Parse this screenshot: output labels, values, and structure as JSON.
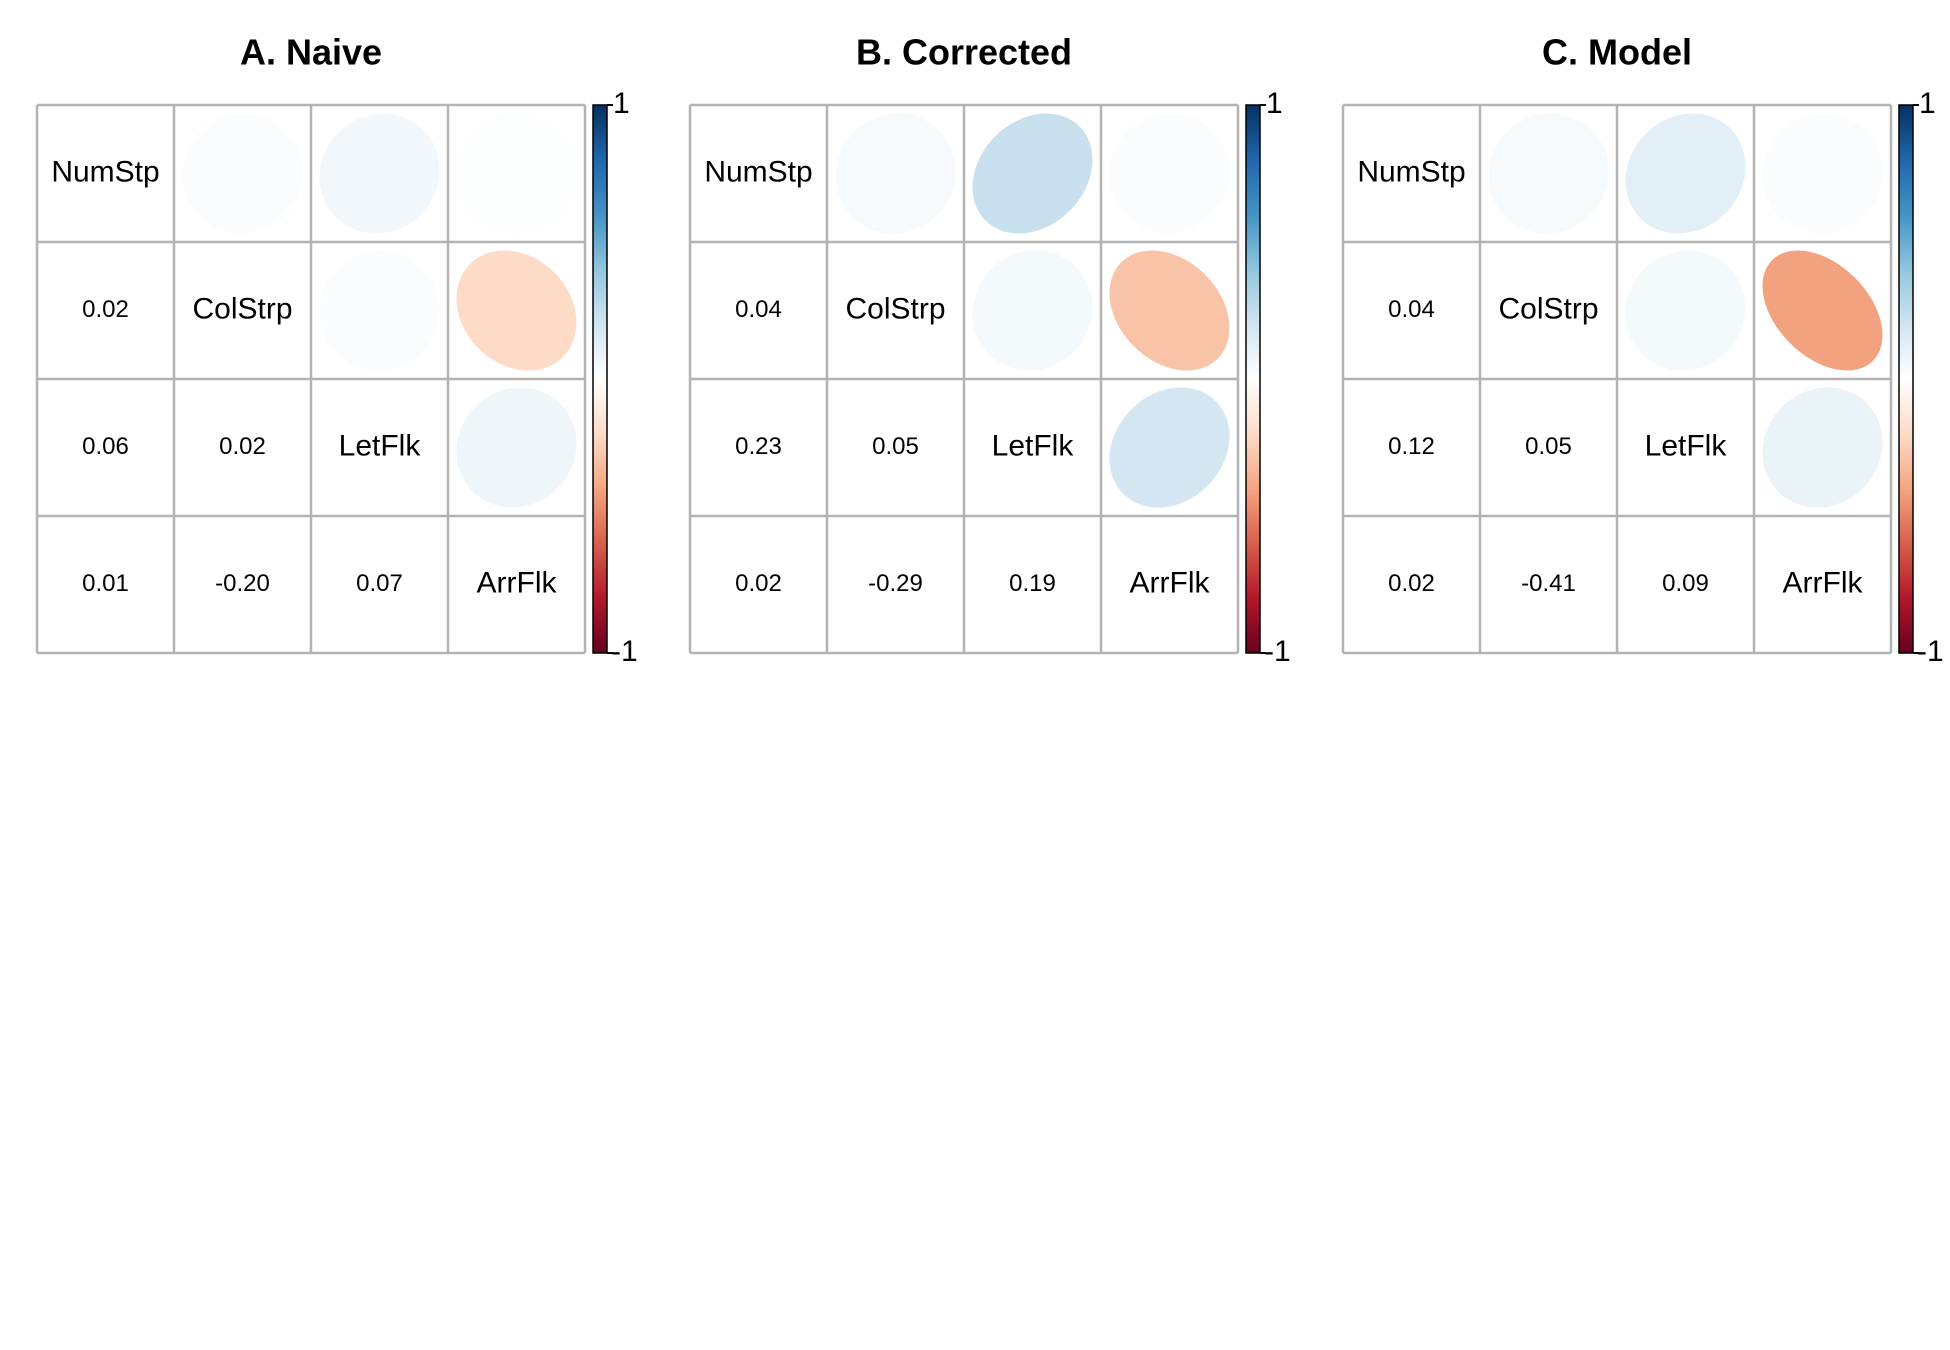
{
  "chart_data": [
    {
      "type": "heatmap",
      "title": "A. Naive",
      "variables": [
        "NumStp",
        "ColStrp",
        "LetFlk",
        "ArrFlk"
      ],
      "matrix": [
        [
          1,
          0.02,
          0.06,
          0.01
        ],
        [
          0.02,
          1,
          0.02,
          -0.2
        ],
        [
          0.06,
          0.02,
          1,
          0.07
        ],
        [
          0.01,
          -0.2,
          0.07,
          1
        ]
      ],
      "lower_labels": [
        [
          "0.02"
        ],
        [
          "0.06",
          "0.02"
        ],
        [
          "0.01",
          "-0.20",
          "0.07"
        ]
      ],
      "colorbar": {
        "max_label": "1",
        "min_label": "-1",
        "range": [
          -1,
          1
        ]
      }
    },
    {
      "type": "heatmap",
      "title": "B. Corrected",
      "variables": [
        "NumStp",
        "ColStrp",
        "LetFlk",
        "ArrFlk"
      ],
      "matrix": [
        [
          1,
          0.04,
          0.23,
          0.02
        ],
        [
          0.04,
          1,
          0.05,
          -0.29
        ],
        [
          0.23,
          0.05,
          1,
          0.19
        ],
        [
          0.02,
          -0.29,
          0.19,
          1
        ]
      ],
      "lower_labels": [
        [
          "0.04"
        ],
        [
          "0.23",
          "0.05"
        ],
        [
          "0.02",
          "-0.29",
          "0.19"
        ]
      ],
      "colorbar": {
        "max_label": "1",
        "min_label": "-1",
        "range": [
          -1,
          1
        ]
      }
    },
    {
      "type": "heatmap",
      "title": "C. Model",
      "variables": [
        "NumStp",
        "ColStrp",
        "LetFlk",
        "ArrFlk"
      ],
      "matrix": [
        [
          1,
          0.04,
          0.12,
          0.02
        ],
        [
          0.04,
          1,
          0.05,
          -0.41
        ],
        [
          0.12,
          0.05,
          1,
          0.09
        ],
        [
          0.02,
          -0.41,
          0.09,
          1
        ]
      ],
      "lower_labels": [
        [
          "0.04"
        ],
        [
          "0.12",
          "0.05"
        ],
        [
          "0.02",
          "-0.41",
          "0.09"
        ]
      ],
      "colorbar": {
        "max_label": "1",
        "min_label": "-1",
        "range": [
          -1,
          1
        ]
      }
    }
  ],
  "colors": {
    "grid": "#b3b3b3",
    "text": "#000000",
    "palette": [
      "#67001f",
      "#b2182b",
      "#d6604d",
      "#f4a582",
      "#fddbc7",
      "#ffffff",
      "#d1e5f0",
      "#92c5de",
      "#4393c3",
      "#2166ac",
      "#053061"
    ]
  }
}
